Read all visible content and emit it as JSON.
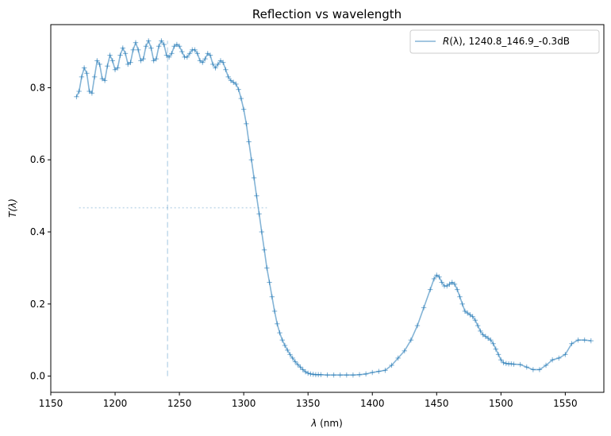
{
  "chart_data": {
    "type": "line",
    "title": "Reflection vs wavelength",
    "xlabel": "λ (nm)",
    "xlabel_symbol": "λ",
    "xlabel_unit": " (nm)",
    "ylabel": "T(λ)",
    "xlim": [
      1150,
      1580
    ],
    "ylim": [
      -0.045,
      0.975
    ],
    "xticks": [
      1150,
      1200,
      1250,
      1300,
      1350,
      1400,
      1450,
      1500,
      1550
    ],
    "yticks": [
      0.0,
      0.2,
      0.4,
      0.6,
      0.8
    ],
    "ytick_labels": [
      "0.0",
      "0.2",
      "0.4",
      "0.6",
      "0.8"
    ],
    "grid": false,
    "legend_position": "top-right",
    "color": "#1f77b4",
    "series": [
      {
        "name": "R(λ), 1240.8_146.9_-0.3dB",
        "name_symbol": "R",
        "name_rest": "(λ), 1240.8_146.9_-0.3dB",
        "marker": "+",
        "x": [
          1170,
          1172,
          1174,
          1176,
          1178,
          1180,
          1182,
          1184,
          1186,
          1188,
          1190,
          1192,
          1194,
          1196,
          1198,
          1200,
          1202,
          1204,
          1206,
          1208,
          1210,
          1212,
          1214,
          1216,
          1218,
          1220,
          1222,
          1224,
          1226,
          1228,
          1230,
          1232,
          1234,
          1236,
          1238,
          1240,
          1242,
          1244,
          1246,
          1248,
          1250,
          1252,
          1254,
          1256,
          1258,
          1260,
          1262,
          1264,
          1266,
          1268,
          1270,
          1272,
          1274,
          1276,
          1278,
          1280,
          1282,
          1284,
          1286,
          1288,
          1290,
          1292,
          1294,
          1296,
          1298,
          1300,
          1302,
          1304,
          1306,
          1308,
          1310,
          1312,
          1314,
          1316,
          1318,
          1320,
          1322,
          1324,
          1326,
          1328,
          1330,
          1332,
          1334,
          1336,
          1338,
          1340,
          1342,
          1344,
          1346,
          1348,
          1350,
          1352,
          1354,
          1356,
          1358,
          1360,
          1365,
          1370,
          1375,
          1380,
          1385,
          1390,
          1395,
          1400,
          1405,
          1410,
          1415,
          1420,
          1425,
          1430,
          1435,
          1440,
          1445,
          1448,
          1450,
          1452,
          1454,
          1456,
          1458,
          1460,
          1462,
          1464,
          1466,
          1468,
          1470,
          1472,
          1474,
          1476,
          1478,
          1480,
          1482,
          1484,
          1486,
          1488,
          1490,
          1492,
          1494,
          1496,
          1498,
          1500,
          1502,
          1504,
          1506,
          1508,
          1510,
          1515,
          1520,
          1525,
          1530,
          1535,
          1540,
          1545,
          1550,
          1555,
          1560,
          1565,
          1570
        ],
        "y": [
          0.775,
          0.79,
          0.83,
          0.855,
          0.84,
          0.79,
          0.785,
          0.83,
          0.875,
          0.865,
          0.825,
          0.82,
          0.86,
          0.89,
          0.875,
          0.85,
          0.855,
          0.89,
          0.91,
          0.895,
          0.865,
          0.87,
          0.905,
          0.925,
          0.905,
          0.875,
          0.88,
          0.915,
          0.93,
          0.91,
          0.875,
          0.88,
          0.915,
          0.93,
          0.92,
          0.89,
          0.885,
          0.895,
          0.915,
          0.92,
          0.915,
          0.9,
          0.885,
          0.885,
          0.895,
          0.905,
          0.905,
          0.895,
          0.875,
          0.87,
          0.88,
          0.895,
          0.89,
          0.865,
          0.855,
          0.865,
          0.875,
          0.87,
          0.85,
          0.83,
          0.82,
          0.815,
          0.81,
          0.795,
          0.77,
          0.74,
          0.7,
          0.65,
          0.6,
          0.55,
          0.5,
          0.45,
          0.4,
          0.35,
          0.3,
          0.26,
          0.22,
          0.18,
          0.145,
          0.12,
          0.1,
          0.085,
          0.072,
          0.06,
          0.05,
          0.04,
          0.032,
          0.025,
          0.018,
          0.012,
          0.008,
          0.006,
          0.005,
          0.004,
          0.004,
          0.004,
          0.003,
          0.003,
          0.003,
          0.003,
          0.003,
          0.004,
          0.006,
          0.01,
          0.013,
          0.016,
          0.03,
          0.05,
          0.07,
          0.1,
          0.14,
          0.19,
          0.24,
          0.27,
          0.28,
          0.275,
          0.26,
          0.25,
          0.25,
          0.255,
          0.26,
          0.255,
          0.24,
          0.22,
          0.2,
          0.18,
          0.175,
          0.17,
          0.165,
          0.155,
          0.14,
          0.125,
          0.115,
          0.11,
          0.105,
          0.1,
          0.09,
          0.075,
          0.06,
          0.045,
          0.037,
          0.035,
          0.034,
          0.034,
          0.033,
          0.032,
          0.025,
          0.018,
          0.018,
          0.03,
          0.045,
          0.05,
          0.06,
          0.09,
          0.1,
          0.1,
          0.098
        ]
      }
    ],
    "annotations": {
      "vline_x": 1240.8,
      "vline_y": [
        0,
        0.93
      ],
      "hline_y": 0.467,
      "hline_x": [
        1172,
        1318
      ]
    }
  }
}
